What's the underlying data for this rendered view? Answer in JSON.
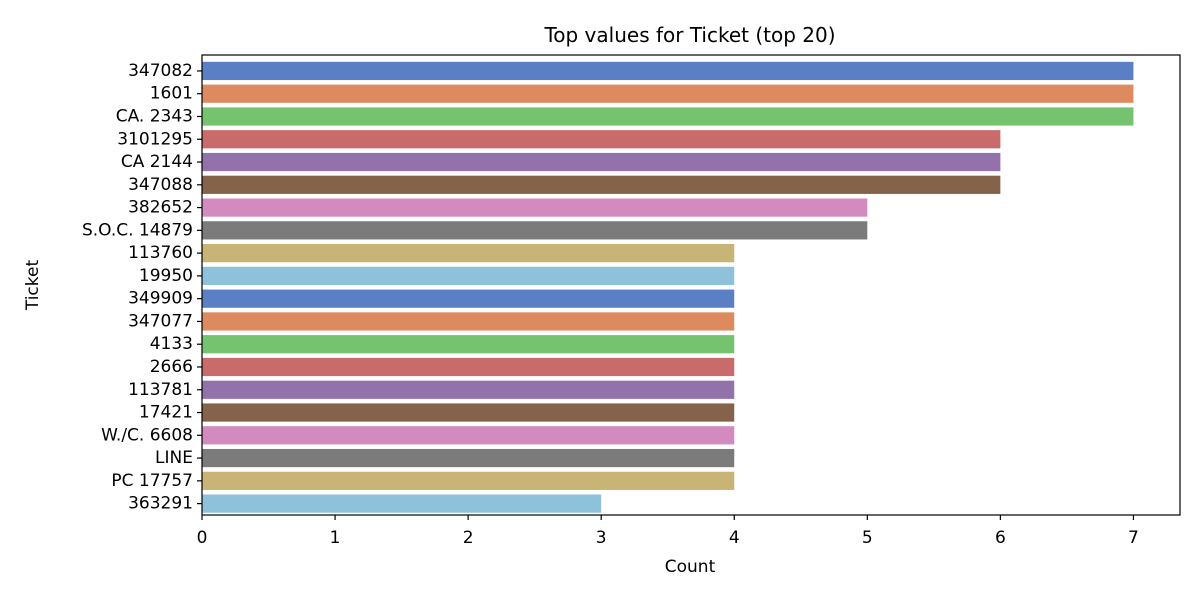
{
  "chart_data": {
    "type": "bar",
    "orientation": "horizontal",
    "title": "Top values for Ticket (top 20)",
    "xlabel": "Count",
    "ylabel": "Ticket",
    "xlim": [
      0,
      7.35
    ],
    "x_ticks": [
      0,
      1,
      2,
      3,
      4,
      5,
      6,
      7
    ],
    "grid": false,
    "categories": [
      "347082",
      "1601",
      "CA. 2343",
      "3101295",
      "CA 2144",
      "347088",
      "382652",
      "S.O.C. 14879",
      "113760",
      "19950",
      "349909",
      "347077",
      "4133",
      "2666",
      "113781",
      "17421",
      "W./C. 6608",
      "LINE",
      "PC 17757",
      "363291"
    ],
    "values": [
      7,
      7,
      7,
      6,
      6,
      6,
      5,
      5,
      4,
      4,
      4,
      4,
      4,
      4,
      4,
      4,
      4,
      4,
      4,
      3
    ],
    "colors": [
      "#5b7fc4",
      "#dd8a5f",
      "#76c36f",
      "#c96b6b",
      "#9371ab",
      "#84634a",
      "#d38bbf",
      "#7b7b7b",
      "#c8b474",
      "#8ec1da",
      "#5b7fc4",
      "#dd8a5f",
      "#76c36f",
      "#c96b6b",
      "#9371ab",
      "#84634a",
      "#d38bbf",
      "#7b7b7b",
      "#c8b474",
      "#8ec1da"
    ]
  }
}
